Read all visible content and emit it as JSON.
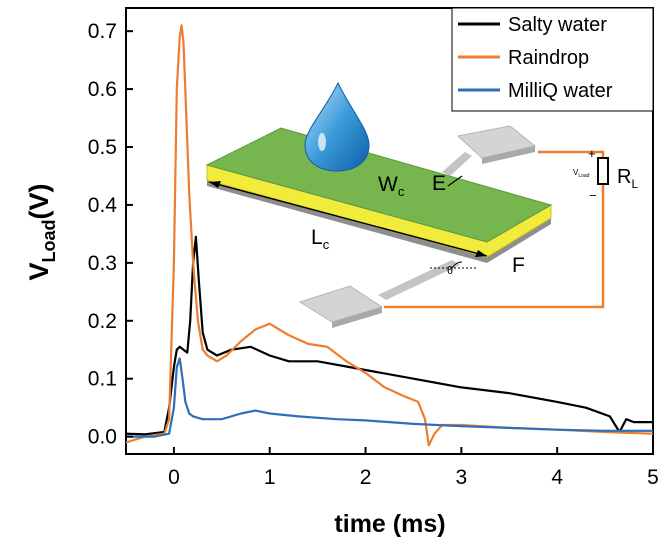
{
  "chart_data": {
    "type": "line",
    "xlabel": "time (ms)",
    "ylabel_main": "V",
    "ylabel_sub": "Load",
    "ylabel_unit": "(V)",
    "xlim": [
      -0.5,
      5.0
    ],
    "ylim": [
      -0.03,
      0.74
    ],
    "x_ticks": [
      0,
      1,
      2,
      3,
      4,
      5
    ],
    "y_ticks": [
      0.0,
      0.1,
      0.2,
      0.3,
      0.4,
      0.5,
      0.6,
      0.7
    ],
    "x_tick_labels": [
      "0",
      "1",
      "2",
      "3",
      "4",
      "5"
    ],
    "y_tick_labels": [
      "0.0",
      "0.1",
      "0.2",
      "0.3",
      "0.4",
      "0.5",
      "0.6",
      "0.7"
    ],
    "legend_position": "top-right",
    "series": [
      {
        "name": "Salty water",
        "color": "#000000",
        "x": [
          -0.5,
          -0.3,
          -0.1,
          -0.05,
          0.0,
          0.03,
          0.06,
          0.1,
          0.14,
          0.17,
          0.2,
          0.23,
          0.26,
          0.3,
          0.35,
          0.45,
          0.6,
          0.8,
          1.0,
          1.2,
          1.5,
          2.0,
          2.5,
          3.0,
          3.5,
          4.0,
          4.3,
          4.55,
          4.65,
          4.72,
          4.8,
          5.0
        ],
        "y": [
          0.005,
          0.004,
          0.008,
          0.05,
          0.12,
          0.15,
          0.155,
          0.15,
          0.145,
          0.2,
          0.3,
          0.345,
          0.27,
          0.18,
          0.15,
          0.14,
          0.15,
          0.155,
          0.14,
          0.13,
          0.13,
          0.115,
          0.1,
          0.085,
          0.075,
          0.06,
          0.05,
          0.035,
          0.008,
          0.03,
          0.025,
          0.025
        ]
      },
      {
        "name": "Raindrop",
        "color": "#ED7D31",
        "x": [
          -0.5,
          -0.3,
          -0.1,
          -0.05,
          0.0,
          0.03,
          0.06,
          0.08,
          0.1,
          0.13,
          0.16,
          0.2,
          0.25,
          0.3,
          0.35,
          0.45,
          0.55,
          0.7,
          0.85,
          1.0,
          1.1,
          1.2,
          1.4,
          1.6,
          1.8,
          2.0,
          2.2,
          2.4,
          2.55,
          2.62,
          2.66,
          2.72,
          2.8,
          3.0,
          3.5,
          4.0,
          4.5,
          5.0
        ],
        "y": [
          -0.01,
          0.0,
          0.005,
          0.03,
          0.3,
          0.6,
          0.69,
          0.71,
          0.68,
          0.55,
          0.42,
          0.3,
          0.2,
          0.15,
          0.14,
          0.13,
          0.14,
          0.165,
          0.185,
          0.195,
          0.185,
          0.175,
          0.16,
          0.155,
          0.13,
          0.11,
          0.085,
          0.07,
          0.06,
          0.03,
          -0.015,
          0.005,
          0.02,
          0.02,
          0.015,
          0.012,
          0.008,
          0.005
        ]
      },
      {
        "name": "MilliQ water",
        "color": "#2F6EBA",
        "x": [
          -0.5,
          -0.2,
          -0.05,
          0.0,
          0.03,
          0.06,
          0.09,
          0.12,
          0.16,
          0.2,
          0.3,
          0.5,
          0.7,
          0.85,
          1.0,
          1.3,
          1.7,
          2.0,
          2.5,
          3.0,
          3.5,
          4.0,
          4.5,
          5.0
        ],
        "y": [
          0.0,
          0.0,
          0.005,
          0.05,
          0.12,
          0.135,
          0.1,
          0.06,
          0.04,
          0.035,
          0.03,
          0.03,
          0.04,
          0.045,
          0.04,
          0.035,
          0.03,
          0.028,
          0.022,
          0.018,
          0.015,
          0.012,
          0.01,
          0.01
        ]
      }
    ],
    "inset": {
      "labels": {
        "wc_main": "W",
        "wc_sub": "c",
        "e": "E",
        "lc_main": "L",
        "lc_sub": "c",
        "f": "F",
        "theta": "θ",
        "rl_main": "R",
        "rl_sub": "L",
        "vload_main": "V",
        "vload_sub": "Load",
        "plus": "+",
        "minus": "−"
      }
    }
  }
}
